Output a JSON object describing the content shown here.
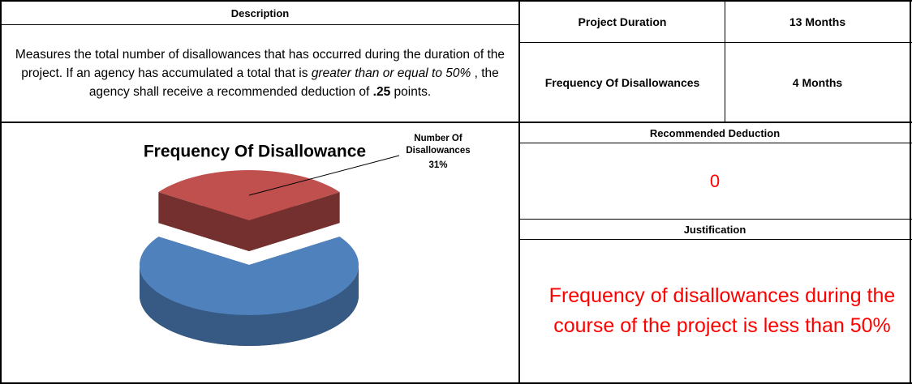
{
  "description": {
    "header": "Description",
    "text": [
      "Measures the total number of disallowances that has occurred during the duration of the project. If an agency has accumulated a total that is ",
      "greater than or equal to 50%",
      " , the agency shall receive a recommended deduction of ",
      ".25",
      " points."
    ]
  },
  "summary": {
    "rows": [
      [
        "Project Duration",
        "13 Months"
      ],
      [
        "Frequency Of Disallowances",
        "4 Months"
      ]
    ]
  },
  "chart_data": {
    "type": "pie",
    "title": "Frequency Of Disallowance",
    "categories": [
      "Number Of Disallowances",
      null
    ],
    "values": [
      31,
      69
    ],
    "value_labels": [
      "31%",
      null
    ],
    "colors": [
      "#c0504d",
      "#4f81bd"
    ]
  },
  "recommended_deduction": {
    "header": "Recommended Deduction",
    "value": 0
  },
  "justification": {
    "header": "Justification",
    "text": "Frequency of disallowances during the course of the project is less than 50%"
  }
}
